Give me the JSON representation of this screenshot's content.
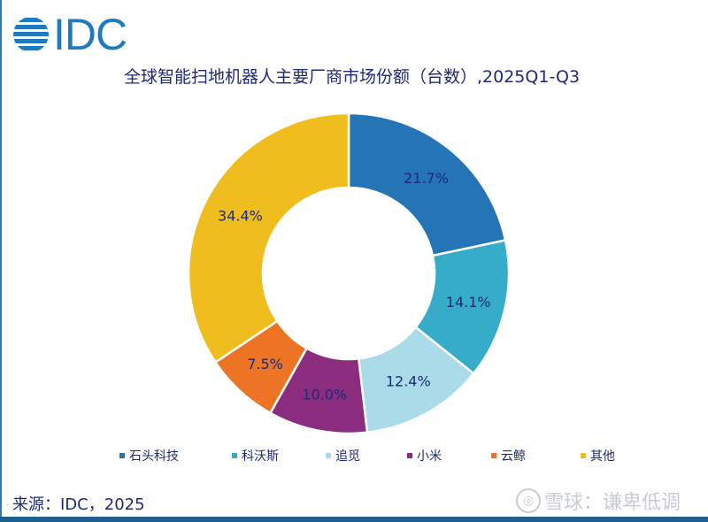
{
  "logo": {
    "text": "IDC"
  },
  "chart_data": {
    "type": "donut",
    "title": "全球智能扫地机器人主要厂商市场份额（台数）,2025Q1-Q3",
    "categories": [
      "石头科技",
      "科沃斯",
      "追觅",
      "小米",
      "云鲸",
      "其他"
    ],
    "values": [
      21.7,
      14.1,
      12.4,
      10.0,
      7.5,
      34.4
    ],
    "labels": [
      "21.7%",
      "14.1%",
      "12.4%",
      "10.0%",
      "7.5%",
      "34.4%"
    ],
    "colors": [
      "#2474b6",
      "#35adc8",
      "#a9dce8",
      "#8c2c7e",
      "#ec7424",
      "#f0bd1f"
    ],
    "legend_position": "bottom"
  },
  "footer": {
    "source": "来源：IDC，2025",
    "watermark": "雪球：谦卑低调"
  }
}
